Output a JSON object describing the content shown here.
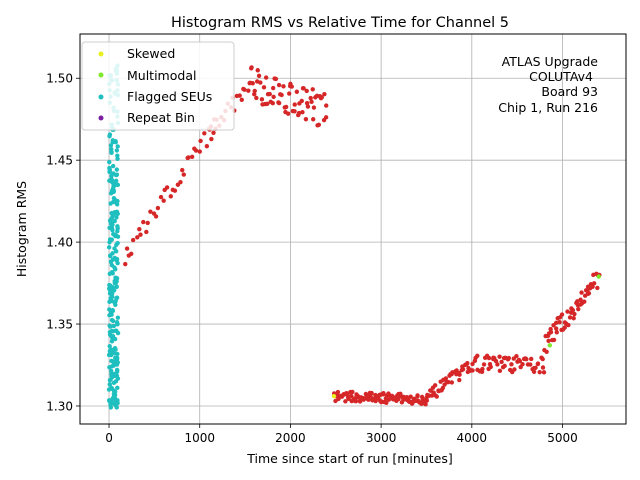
{
  "chart_data": {
    "type": "scatter",
    "title": "Histogram RMS vs Relative Time for Channel 5",
    "xlabel": "Time since start of run [minutes]",
    "ylabel": "Histogram RMS",
    "xlim": [
      -320,
      5700
    ],
    "ylim": [
      1.289,
      1.527
    ],
    "xticks": [
      0,
      1000,
      2000,
      3000,
      4000,
      5000
    ],
    "yticks": [
      1.3,
      1.35,
      1.4,
      1.45,
      1.5
    ],
    "xtick_labels": [
      "0",
      "1000",
      "2000",
      "3000",
      "4000",
      "5000"
    ],
    "ytick_labels": [
      "1.30",
      "1.35",
      "1.40",
      "1.45",
      "1.50"
    ],
    "grid": true,
    "legend_position": "upper-left",
    "annotation": [
      "ATLAS Upgrade",
      "COLUTAv4",
      "Board 93",
      "Chip 1, Run 216"
    ],
    "series": [
      {
        "name": "Skewed",
        "color": "#e8f020",
        "points": [
          [
            2480,
            1.306
          ]
        ]
      },
      {
        "name": "Multimodal",
        "color": "#7ee82a",
        "points": [
          [
            5400,
            1.379
          ],
          [
            4860,
            1.337
          ]
        ]
      },
      {
        "name": "Flagged SEUs",
        "color": "#1fbfbf",
        "points": []
      },
      {
        "name": "Repeat Bin",
        "color": "#7b1fa2",
        "points": []
      }
    ],
    "normal_series": {
      "color": "#d62728",
      "cluster_color": "#1fbfbf",
      "segments": [
        {
          "from": [
            170,
            1.39
          ],
          "to": [
            1150,
            1.47
          ],
          "n": 38,
          "noise": 0.006
        },
        {
          "from": [
            1100,
            1.465
          ],
          "to": [
            1550,
            1.497
          ],
          "n": 20,
          "noise": 0.005
        },
        {
          "from": [
            1550,
            1.498
          ],
          "to": [
            2400,
            1.48
          ],
          "n": 70,
          "noise": 0.011
        },
        {
          "from": [
            2480,
            1.306
          ],
          "to": [
            3500,
            1.304
          ],
          "n": 110,
          "noise": 0.003
        },
        {
          "from": [
            3500,
            1.305
          ],
          "to": [
            4000,
            1.325
          ],
          "n": 45,
          "noise": 0.004
        },
        {
          "from": [
            4000,
            1.326
          ],
          "to": [
            4800,
            1.325
          ],
          "n": 60,
          "noise": 0.005
        },
        {
          "from": [
            4800,
            1.337
          ],
          "to": [
            5400,
            1.378
          ],
          "n": 55,
          "noise": 0.006
        }
      ],
      "cluster": {
        "x_min": 0,
        "x_max": 100,
        "y_min": 1.299,
        "y_max": 1.51,
        "n": 260
      }
    }
  }
}
